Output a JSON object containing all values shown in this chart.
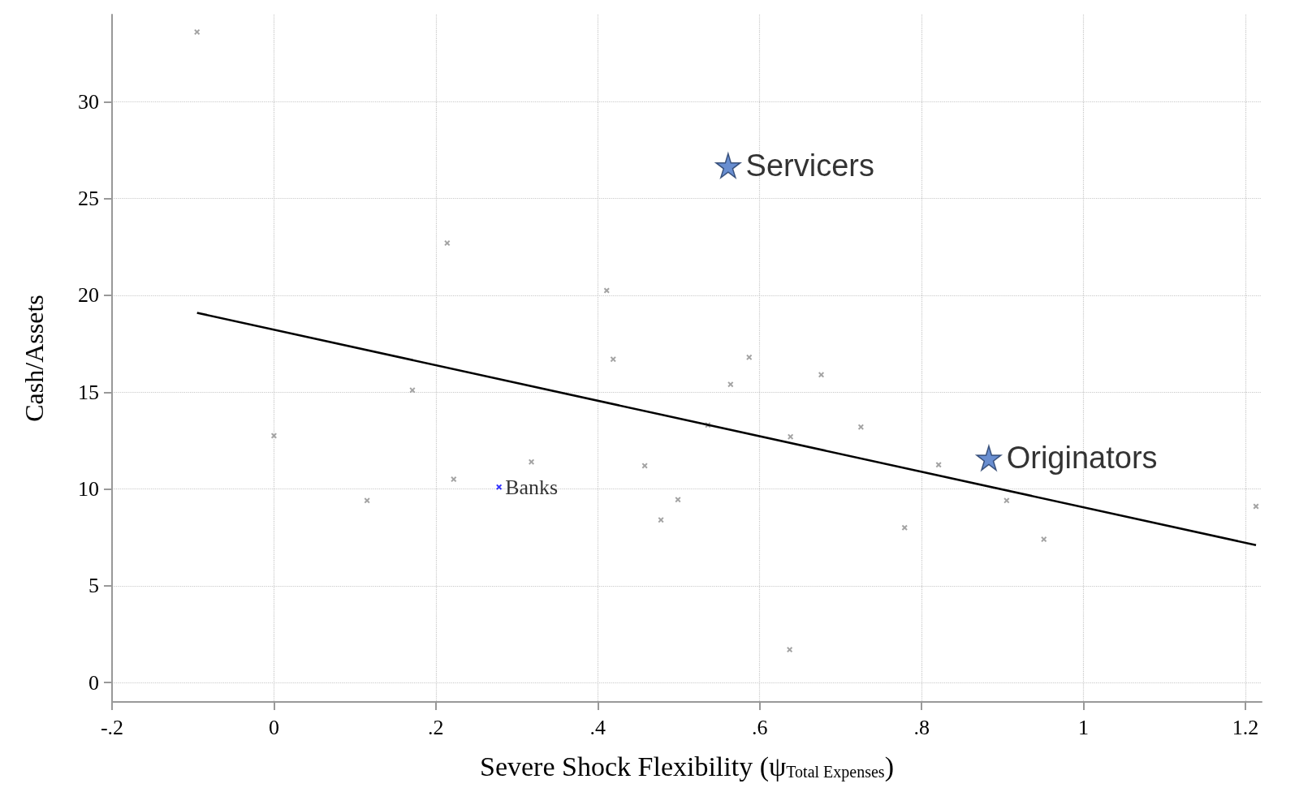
{
  "chart_data": {
    "type": "scatter",
    "xlabel": "Severe Shock Flexibility (ψ$_{Total Expenses}$)",
    "ylabel": "Cash/Assets",
    "xlim": [
      -0.2,
      1.22
    ],
    "xticks": [
      {
        "value": -0.2,
        "label": "-.2"
      },
      0,
      {
        "value": 0.2,
        "label": ".2"
      },
      {
        "value": 0.4,
        "label": ".4"
      },
      {
        "value": 0.6,
        "label": ".6"
      },
      {
        "value": 0.8,
        "label": ".8"
      },
      1,
      {
        "value": 1.2,
        "label": "1.2"
      }
    ],
    "ylim": [
      -1,
      34.5
    ],
    "yticks": [
      0,
      5,
      10,
      15,
      20,
      25,
      30
    ],
    "grid": true,
    "series": [
      {
        "marker": "cross",
        "color": "#8c8c8c",
        "x": [
          -0.095,
          0.0,
          0.115,
          0.171,
          0.214,
          0.222,
          0.318,
          0.411,
          0.419,
          0.458,
          0.478,
          0.499,
          0.536,
          0.564,
          0.587,
          0.638,
          0.637,
          0.676,
          0.725,
          0.779,
          0.821,
          0.905,
          0.951,
          1.213
        ],
        "values": [
          33.6,
          12.75,
          9.4,
          15.1,
          22.7,
          10.5,
          11.4,
          20.25,
          16.7,
          11.2,
          8.4,
          9.45,
          13.3,
          15.4,
          16.8,
          12.7,
          1.7,
          15.9,
          13.2,
          8.0,
          11.25,
          9.4,
          7.4,
          9.1
        ]
      },
      {
        "type": "scatter",
        "marker": "cross",
        "name": "Banks",
        "color": "#0000ff",
        "x": [
          0.278
        ],
        "values": [
          10.1
        ]
      },
      {
        "type": "scatter",
        "marker": "star",
        "name": "Servicers",
        "color": "#4472c4",
        "x": [
          0.561
        ],
        "values": [
          26.7
        ]
      },
      {
        "type": "scatter",
        "marker": "star",
        "name": "Originators",
        "color": "#4472c4",
        "x": [
          0.883
        ],
        "values": [
          11.6
        ]
      },
      {
        "type": "line",
        "marker": "none",
        "line_style": "solid",
        "color": "#000000",
        "x": [
          -0.095,
          1.213
        ],
        "values": [
          19.1,
          7.1
        ]
      }
    ]
  }
}
